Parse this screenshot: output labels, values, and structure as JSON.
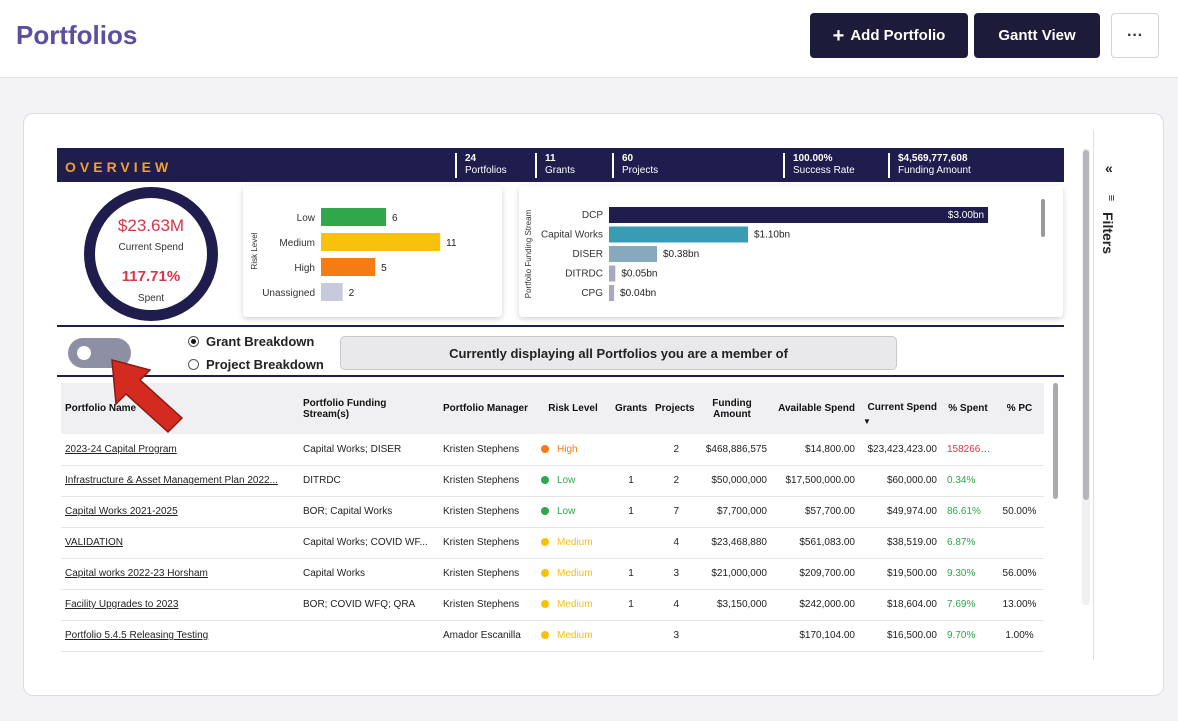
{
  "header": {
    "title": "Portfolios",
    "add_label": "Add Portfolio",
    "add_icon": "plus-icon",
    "gantt_label": "Gantt View",
    "more_label": "···"
  },
  "overview": {
    "title": "OVERVIEW",
    "stats": [
      {
        "value": "24",
        "label": "Portfolios"
      },
      {
        "value": "11",
        "label": "Grants"
      },
      {
        "value": "60",
        "label": "Projects"
      },
      {
        "value": "100.00%",
        "label": "Success Rate"
      },
      {
        "value": "$4,569,777,608",
        "label": "Funding Amount"
      }
    ],
    "donut": {
      "current_spend": "$23.63M",
      "current_spend_label": "Current Spend",
      "spent_pct": "117.71%",
      "spent_label": "Spent"
    }
  },
  "chart_data": [
    {
      "type": "bar",
      "orientation": "horizontal",
      "ylabel": "Risk Level",
      "categories": [
        "Low",
        "Medium",
        "High",
        "Unassigned"
      ],
      "values": [
        6,
        11,
        5,
        2
      ],
      "value_labels": [
        "6",
        "11",
        "5",
        "2"
      ],
      "colors": [
        "#2ea84a",
        "#f9c10e",
        "#f57c13",
        "#c7c9dc"
      ],
      "xlim": [
        0,
        12
      ]
    },
    {
      "type": "bar",
      "orientation": "horizontal",
      "ylabel": "Portfolio Funding Stream",
      "categories": [
        "DCP",
        "Capital Works",
        "DISER",
        "DITRDC",
        "CPG"
      ],
      "values": [
        3.0,
        1.1,
        0.38,
        0.05,
        0.04
      ],
      "value_labels": [
        "$3.00bn",
        "$1.10bn",
        "$0.38bn",
        "$0.05bn",
        "$0.04bn"
      ],
      "colors": [
        "#1f1d4d",
        "#3a9bb4",
        "#86a9bd",
        "#a7a9c4",
        "#a7a9c4"
      ],
      "xlim": [
        0,
        3.15
      ]
    }
  ],
  "controls": {
    "grant_breakdown": "Grant Breakdown",
    "project_breakdown": "Project Breakdown",
    "banner": "Currently displaying all Portfolios you are a member of"
  },
  "table": {
    "headers": {
      "name": "Portfolio Name",
      "stream": "Portfolio Funding Stream(s)",
      "manager": "Portfolio Manager",
      "risk": "Risk Level",
      "grants": "Grants",
      "projects": "Projects",
      "funding": "Funding Amount",
      "available": "Available Spend",
      "current": "Current Spend",
      "spent": "% Spent",
      "pc": "% PC"
    },
    "rows": [
      {
        "name": "2023-24 Capital Program",
        "stream": "Capital Works; DISER",
        "manager": "Kristen Stephens",
        "risk": "High",
        "risk_color": "#f57c13",
        "grants": "",
        "projects": "2",
        "funding": "$468,886,575",
        "available": "$14,800.00",
        "current": "$23,423,423.00",
        "spent": "158266....",
        "spent_color": "#d9344a",
        "pc": ""
      },
      {
        "name": "Infrastructure & Asset Management Plan 2022...",
        "stream": "DITRDC",
        "manager": "Kristen Stephens",
        "risk": "Low",
        "risk_color": "#2ea84a",
        "grants": "1",
        "projects": "2",
        "funding": "$50,000,000",
        "available": "$17,500,000.00",
        "current": "$60,000.00",
        "spent": "0.34%",
        "spent_color": "#2ea84a",
        "pc": ""
      },
      {
        "name": "Capital Works 2021-2025",
        "stream": "BOR; Capital Works",
        "manager": "Kristen Stephens",
        "risk": "Low",
        "risk_color": "#2ea84a",
        "grants": "1",
        "projects": "7",
        "funding": "$7,700,000",
        "available": "$57,700.00",
        "current": "$49,974.00",
        "spent": "86.61%",
        "spent_color": "#2ea84a",
        "pc": "50.00%"
      },
      {
        "name": "VALIDATION",
        "stream": "Capital Works; COVID WF...",
        "manager": "Kristen Stephens",
        "risk": "Medium",
        "risk_color": "#f9c10e",
        "grants": "",
        "projects": "4",
        "funding": "$23,468,880",
        "available": "$561,083.00",
        "current": "$38,519.00",
        "spent": "6.87%",
        "spent_color": "#2ea84a",
        "pc": ""
      },
      {
        "name": "Capital works 2022-23 Horsham",
        "stream": "Capital Works",
        "manager": "Kristen Stephens",
        "risk": "Medium",
        "risk_color": "#f9c10e",
        "grants": "1",
        "projects": "3",
        "funding": "$21,000,000",
        "available": "$209,700.00",
        "current": "$19,500.00",
        "spent": "9.30%",
        "spent_color": "#2ea84a",
        "pc": "56.00%"
      },
      {
        "name": "Facility Upgrades to 2023",
        "stream": "BOR; COVID WFQ; QRA",
        "manager": "Kristen Stephens",
        "risk": "Medium",
        "risk_color": "#f9c10e",
        "grants": "1",
        "projects": "4",
        "funding": "$3,150,000",
        "available": "$242,000.00",
        "current": "$18,604.00",
        "spent": "7.69%",
        "spent_color": "#2ea84a",
        "pc": "13.00%"
      },
      {
        "name": "Portfolio 5.4.5 Releasing Testing",
        "stream": "",
        "manager": "Amador Escanilla",
        "risk": "Medium",
        "risk_color": "#f9c10e",
        "grants": "",
        "projects": "3",
        "funding": "",
        "available": "$170,104.00",
        "current": "$16,500.00",
        "spent": "9.70%",
        "spent_color": "#2ea84a",
        "pc": "1.00%"
      }
    ]
  },
  "sidebar": {
    "collapse": "«",
    "filter_glyph": "≡",
    "filters_label": "Filters"
  }
}
